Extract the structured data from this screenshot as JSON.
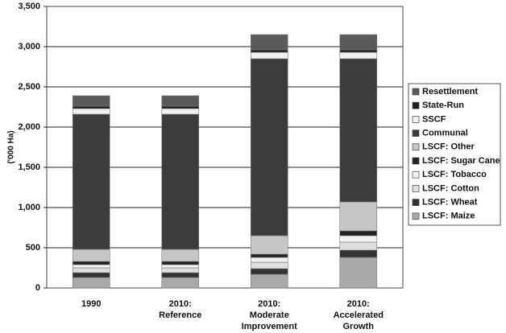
{
  "chart_data": {
    "type": "stacked_bar",
    "y_label": "('000 Ha)",
    "categories": [
      "1990",
      "2010:\nReference",
      "2010:\nModerate\nImprovement",
      "2010:\nAccelerated\nGrowth"
    ],
    "series": [
      {
        "name": "LSCF: Maize",
        "color": "#a9a9a9",
        "values": [
          130,
          130,
          170,
          380
        ]
      },
      {
        "name": "LSCF: Wheat",
        "color": "#333333",
        "values": [
          60,
          60,
          70,
          90
        ]
      },
      {
        "name": "LSCF: Cotton",
        "color": "#dedede",
        "values": [
          60,
          60,
          80,
          100
        ]
      },
      {
        "name": "LSCF: Tobacco",
        "color": "#f2f2f2",
        "values": [
          40,
          40,
          60,
          80
        ]
      },
      {
        "name": "LSCF: Sugar Cane",
        "color": "#222222",
        "values": [
          40,
          40,
          40,
          60
        ]
      },
      {
        "name": "LSCF: Other",
        "color": "#c6c6c6",
        "values": [
          150,
          150,
          230,
          360
        ]
      },
      {
        "name": "Communal",
        "color": "#3c3c3c",
        "values": [
          1680,
          1680,
          2200,
          1780
        ]
      },
      {
        "name": "SSCF",
        "color": "#f0f0f0",
        "values": [
          70,
          70,
          80,
          80
        ]
      },
      {
        "name": "State-Run",
        "color": "#1e1e1e",
        "values": [
          30,
          30,
          30,
          30
        ]
      },
      {
        "name": "Resettlement",
        "color": "#5a5a5a",
        "values": [
          130,
          130,
          190,
          190
        ]
      }
    ],
    "ylim": [
      0,
      3500
    ],
    "yticks": [
      0,
      500,
      {
        "value": 1000,
        "label": "1,000"
      },
      {
        "value": 1500,
        "label": "1,500"
      },
      {
        "value": 2000,
        "label": "2,000"
      },
      {
        "value": 2500,
        "label": "2,500"
      },
      {
        "value": 3000,
        "label": "3,000"
      },
      {
        "value": 3500,
        "label": "3,500"
      }
    ],
    "grid": true,
    "legend": "right"
  }
}
